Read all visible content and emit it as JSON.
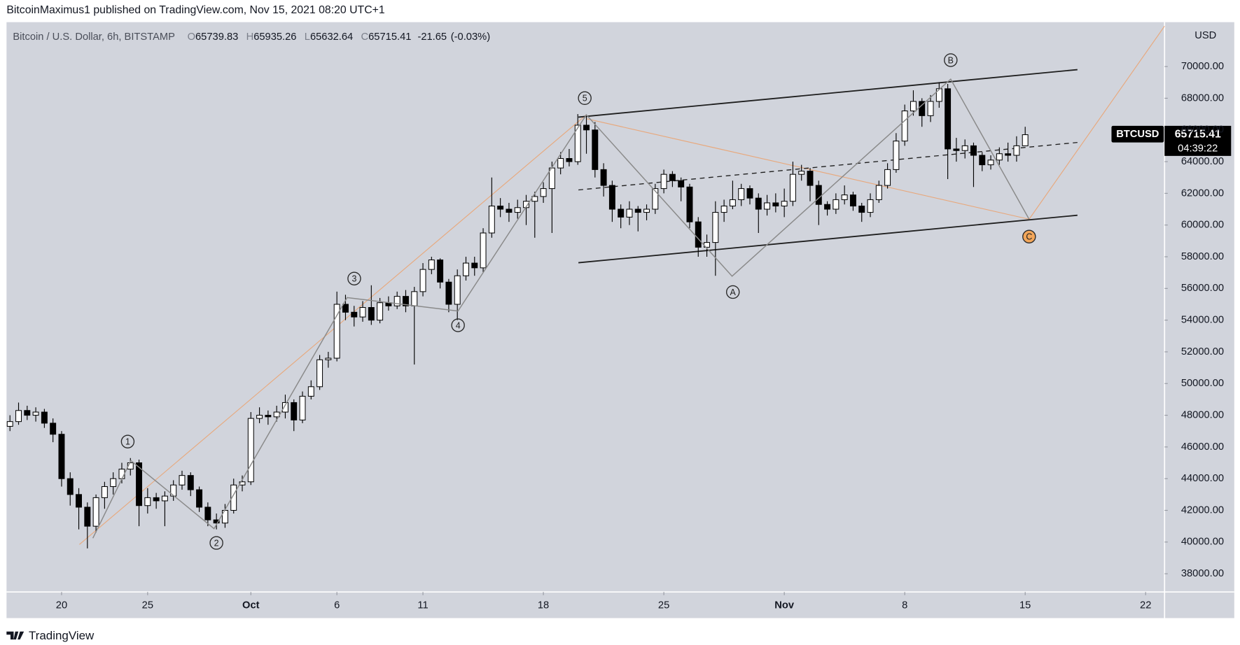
{
  "header": {
    "published": "BitcoinMaximus1 published on TradingView.com, Nov 15, 2021 08:20 UTC+1"
  },
  "chart_data": {
    "type": "candlestick",
    "title": "Bitcoin / U.S. Dollar, 6h, BITSTAMP",
    "ohlc_legend": {
      "labels": [
        "O",
        "H",
        "L",
        "C"
      ],
      "values": [
        65739.83,
        65935.26,
        65632.64,
        65715.41
      ],
      "change": -21.65,
      "change_label": "(-0.03%)"
    },
    "symbol": "BTCUSD",
    "last_price": 65715.41,
    "countdown": "04:39:22",
    "y_unit": "USD",
    "x": [
      17,
      17.5,
      18,
      18.5,
      19,
      19.5,
      20,
      20.5,
      21,
      21.5,
      22,
      22.5,
      23,
      23.5,
      24,
      24.5,
      25,
      25.5,
      26,
      26.5,
      27,
      27.5,
      28,
      28.5,
      29,
      29.5,
      30,
      30.5,
      31,
      31.5,
      32,
      32.5,
      33,
      33.5,
      34,
      34.5,
      35,
      35.5,
      36,
      36.5,
      37,
      37.5,
      38,
      38.5,
      39,
      39.5,
      40,
      40.5,
      41,
      41.5,
      42,
      42.5,
      43,
      43.5,
      44,
      44.5,
      45,
      45.5,
      46,
      46.5,
      47,
      47.5,
      48,
      48.5,
      49,
      49.5,
      50,
      50.5,
      51,
      51.5,
      52,
      52.5,
      53,
      53.5,
      54,
      54.5,
      55,
      55.5,
      56,
      56.5,
      57,
      57.5,
      58,
      58.5,
      59,
      59.5,
      60,
      60.5,
      61,
      61.5,
      62,
      62.5,
      63,
      63.5,
      64,
      64.5,
      65,
      65.5,
      66,
      66.5,
      67,
      67.5,
      68,
      68.5,
      69,
      69.5,
      70,
      70.5,
      71,
      71.5,
      72,
      72.5,
      73,
      73.5,
      74,
      74.5,
      75,
      75.5,
      76
    ],
    "open": [
      47300,
      47600,
      48300,
      48000,
      48200,
      47500,
      46800,
      44000,
      43000,
      42200,
      41000,
      42800,
      43500,
      44000,
      44600,
      45000,
      42300,
      42800,
      42600,
      42900,
      43600,
      44200,
      43300,
      42200,
      41400,
      41200,
      42000,
      43600,
      43800,
      47800,
      48000,
      47900,
      48200,
      48800,
      47700,
      49200,
      49800,
      51500,
      51600,
      55000,
      54500,
      54200,
      54800,
      54000,
      55100,
      54900,
      55500,
      54900,
      55800,
      57200,
      57800,
      56400,
      55000,
      56800,
      57600,
      57300,
      59500,
      61200,
      61000,
      60800,
      61100,
      61500,
      61800,
      62300,
      63600,
      64200,
      64000,
      66300,
      66000,
      63500,
      62500,
      61000,
      60500,
      61000,
      60800,
      61000,
      62300,
      63200,
      62800,
      62400,
      60200,
      58600,
      58900,
      60800,
      61200,
      61600,
      62300,
      61700,
      61000,
      61400,
      61200,
      61500,
      63200,
      63400,
      62500,
      61300,
      61000,
      61600,
      61900,
      61200,
      60800,
      61600,
      62500,
      63500,
      65300,
      67200,
      67800,
      66900,
      67800,
      68600,
      64800,
      64700,
      65000,
      64400,
      63800,
      64100,
      64500,
      64400,
      65000
    ],
    "high": [
      48000,
      48800,
      48600,
      48500,
      48400,
      47800,
      47000,
      44400,
      43400,
      42500,
      43000,
      43800,
      44400,
      45000,
      45300,
      45200,
      43400,
      43100,
      43200,
      43900,
      44500,
      44400,
      43500,
      42500,
      41800,
      42400,
      44000,
      44200,
      48200,
      48500,
      48300,
      48600,
      49300,
      49000,
      49500,
      50200,
      51800,
      52000,
      55800,
      55600,
      54900,
      55200,
      56200,
      55400,
      55500,
      55800,
      55900,
      56100,
      57600,
      58000,
      57900,
      56600,
      57200,
      58000,
      58000,
      59800,
      63000,
      61700,
      61400,
      61600,
      61900,
      62100,
      62700,
      64000,
      64600,
      64800,
      67000,
      66900,
      66500,
      63900,
      62800,
      61300,
      61500,
      61200,
      61300,
      62600,
      63500,
      63400,
      63000,
      62600,
      60500,
      59400,
      61500,
      61600,
      62800,
      62600,
      62500,
      62000,
      61900,
      62000,
      62300,
      64000,
      63800,
      63600,
      62800,
      61500,
      62000,
      62500,
      62100,
      61400,
      62000,
      62800,
      63900,
      65800,
      67600,
      68500,
      68000,
      68200,
      69000,
      68900,
      65500,
      65400,
      65200,
      64600,
      64400,
      64900,
      65200,
      65600,
      66200
    ],
    "low": [
      47000,
      47400,
      47700,
      47600,
      47200,
      46300,
      43500,
      42300,
      40800,
      39600,
      40600,
      42100,
      43000,
      43700,
      44200,
      41000,
      41800,
      42100,
      41000,
      42600,
      43300,
      42900,
      41900,
      41000,
      40800,
      40900,
      41800,
      43200,
      43600,
      47500,
      47400,
      47600,
      47800,
      47000,
      47500,
      49000,
      49600,
      51000,
      51400,
      54000,
      53600,
      53900,
      53700,
      53800,
      54600,
      54700,
      54500,
      51200,
      55500,
      56900,
      56000,
      54500,
      54000,
      56500,
      56800,
      57000,
      59200,
      60500,
      60200,
      60400,
      60000,
      59200,
      61400,
      59500,
      63200,
      63700,
      63800,
      64500,
      63000,
      61800,
      60200,
      59800,
      60000,
      59600,
      60300,
      60700,
      62000,
      62400,
      61500,
      59800,
      58000,
      58000,
      56800,
      60200,
      61000,
      61200,
      61300,
      59500,
      60600,
      60800,
      60500,
      61200,
      62800,
      61500,
      60000,
      60600,
      60700,
      61300,
      60900,
      60200,
      60500,
      61400,
      62300,
      63300,
      65000,
      66900,
      66200,
      66500,
      67400,
      62900,
      64000,
      64200,
      62400,
      63400,
      63500,
      63800,
      64000,
      64000,
      65000
    ],
    "close": [
      47600,
      48300,
      48000,
      48200,
      47500,
      46800,
      44000,
      43000,
      42200,
      41000,
      42800,
      43500,
      44000,
      44600,
      45000,
      42300,
      42800,
      42600,
      42900,
      43600,
      44200,
      43300,
      42200,
      41400,
      41200,
      42000,
      43600,
      43800,
      47800,
      48000,
      47900,
      48200,
      48800,
      47700,
      49200,
      49800,
      51500,
      51600,
      55000,
      54500,
      54200,
      54800,
      54000,
      55100,
      54900,
      55500,
      54900,
      55800,
      57200,
      57800,
      56400,
      55000,
      56800,
      57600,
      57300,
      59500,
      61200,
      61000,
      60800,
      61100,
      61500,
      61800,
      62300,
      63600,
      64200,
      64000,
      66300,
      66000,
      63500,
      62500,
      61000,
      60500,
      61000,
      60800,
      61000,
      62300,
      63200,
      62800,
      62400,
      60200,
      58600,
      58900,
      60800,
      61200,
      61600,
      62300,
      61700,
      61000,
      61400,
      61200,
      61500,
      63200,
      63400,
      62500,
      61300,
      61000,
      61600,
      61900,
      61200,
      60800,
      61600,
      62500,
      63500,
      65300,
      67200,
      67800,
      66900,
      67800,
      68600,
      64800,
      64700,
      65000,
      64400,
      63800,
      64100,
      64500,
      64400,
      65000,
      65700
    ],
    "xlim": [
      16.8,
      84.1
    ],
    "xticks": [
      {
        "value": 20,
        "label": "20"
      },
      {
        "value": 25,
        "label": "25"
      },
      {
        "value": 31,
        "label": "Oct"
      },
      {
        "value": 36,
        "label": "6"
      },
      {
        "value": 41,
        "label": "11"
      },
      {
        "value": 48,
        "label": "18"
      },
      {
        "value": 55,
        "label": "25"
      },
      {
        "value": 62,
        "label": "Nov"
      },
      {
        "value": 69,
        "label": "8"
      },
      {
        "value": 76,
        "label": "15"
      },
      {
        "value": 83,
        "label": "22"
      }
    ],
    "ylim": [
      36850,
      72800
    ],
    "yticks": [
      {
        "value": 38000,
        "label": "38000.00"
      },
      {
        "value": 40000,
        "label": "40000.00"
      },
      {
        "value": 42000,
        "label": "42000.00"
      },
      {
        "value": 44000,
        "label": "44000.00"
      },
      {
        "value": 46000,
        "label": "46000.00"
      },
      {
        "value": 48000,
        "label": "48000.00"
      },
      {
        "value": 50000,
        "label": "50000.00"
      },
      {
        "value": 52000,
        "label": "52000.00"
      },
      {
        "value": 54000,
        "label": "54000.00"
      },
      {
        "value": 56000,
        "label": "56000.00"
      },
      {
        "value": 58000,
        "label": "58000.00"
      },
      {
        "value": 60000,
        "label": "60000.00"
      },
      {
        "value": 62000,
        "label": "62000.00"
      },
      {
        "value": 64000,
        "label": "64000.00"
      },
      {
        "value": 66000,
        "label": "66000.00"
      },
      {
        "value": 68000,
        "label": "68000.00"
      },
      {
        "value": 70000,
        "label": "70000.00"
      }
    ],
    "up_color": "#ffffff",
    "down_color": "#000000",
    "annotations": [
      "1",
      "2",
      "3",
      "4",
      "5",
      "A",
      "B",
      "C"
    ]
  },
  "footer": {
    "brand": "TradingView"
  }
}
